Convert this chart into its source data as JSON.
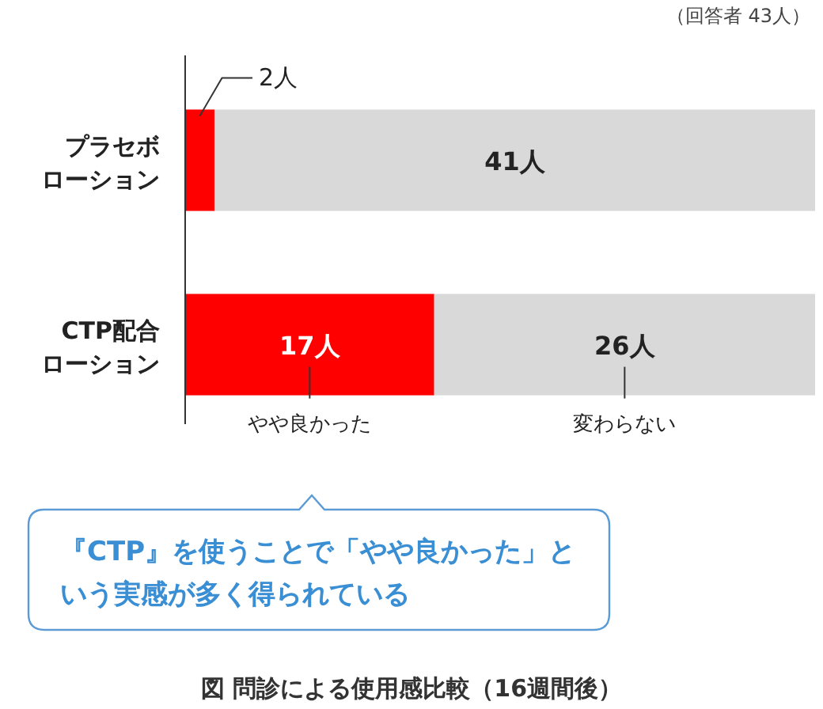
{
  "chart_data": {
    "type": "bar",
    "orientation": "horizontal",
    "stacked": true,
    "legend": false,
    "title": "図 問診による使用感比較（16週間後）",
    "categories": [
      "プラセボローション",
      "CTP配合ローション"
    ],
    "series": [
      {
        "name": "やや良かった",
        "color": "#ff0000",
        "values": [
          2,
          17
        ],
        "value_labels": [
          "2人",
          "17人"
        ]
      },
      {
        "name": "変わらない",
        "color": "#d9d9d9",
        "values": [
          41,
          26
        ],
        "value_labels": [
          "41人",
          "26人"
        ]
      }
    ],
    "annotations": [
      "（回答者 43人）",
      "『CTP』を使うことで「やや良かった」という実感が多く得られている"
    ]
  }
}
